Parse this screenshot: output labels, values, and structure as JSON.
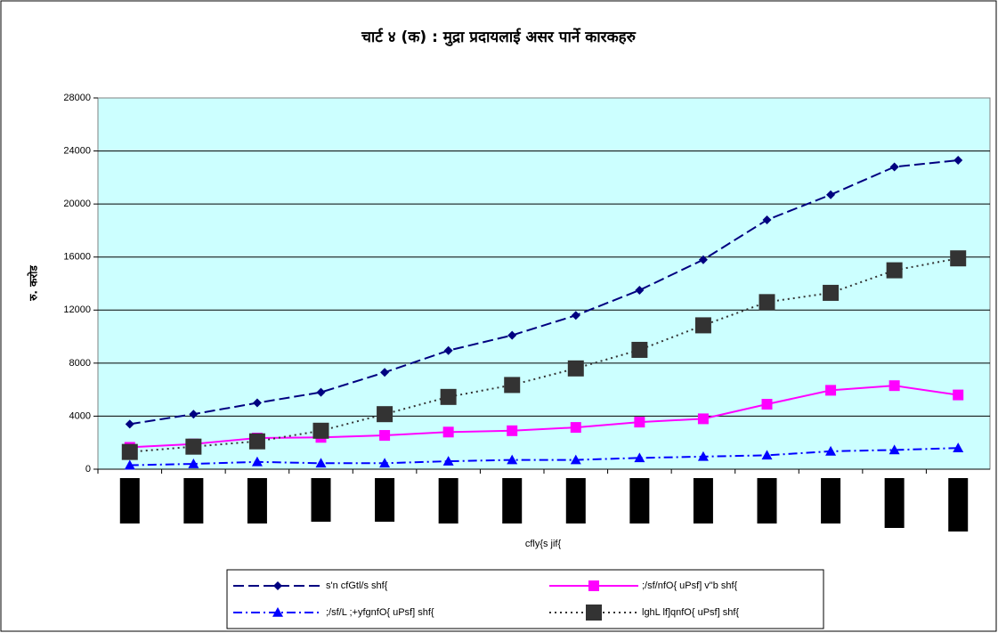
{
  "chart_data": {
    "type": "line",
    "title": "चार्ट ४ (क) : मुद्रा प्रदायलाई असर पार्ने कारकहरु",
    "ylabel": "रु. करोड",
    "xlabel": "cfly{s jif{",
    "categories": [
      null,
      null,
      null,
      null,
      null,
      null,
      null,
      null,
      null,
      null,
      null,
      null,
      null,
      null
    ],
    "series": [
      {
        "name": "s'n cfGtl/s shf{",
        "color": "#000080",
        "dash": "dash",
        "marker": "diamond",
        "values": [
          3400,
          4150,
          5000,
          5800,
          7300,
          8950,
          10100,
          11600,
          13500,
          15800,
          18800,
          20700,
          22800,
          23300
        ]
      },
      {
        "name": ";/sf/nfO{ uPsf] v\"b shf{",
        "color": "#ff00ff",
        "dash": "solid",
        "marker": "square",
        "values": [
          1650,
          1900,
          2350,
          2400,
          2550,
          2800,
          2900,
          3150,
          3550,
          3800,
          4900,
          5950,
          6300,
          5600
        ]
      },
      {
        "name": ";/sf/L ;+yfgnfO{ uPsf] shf{",
        "color": "#0000ff",
        "dash": "dashdot",
        "marker": "triangle",
        "values": [
          300,
          400,
          550,
          450,
          450,
          600,
          700,
          700,
          850,
          950,
          1050,
          1350,
          1450,
          1600
        ]
      },
      {
        "name": "lghL lf]qnfO{ uPsf] shf{",
        "color": "#333333",
        "dash": "dot",
        "marker": "square",
        "values": [
          1300,
          1700,
          2100,
          2900,
          4150,
          5450,
          6350,
          7600,
          9000,
          10850,
          12600,
          13300,
          15000,
          15900
        ]
      }
    ],
    "ylim": [
      0,
      28000
    ],
    "yticks": [
      0,
      4000,
      8000,
      12000,
      16000,
      20000,
      24000,
      28000
    ],
    "grid": true
  }
}
